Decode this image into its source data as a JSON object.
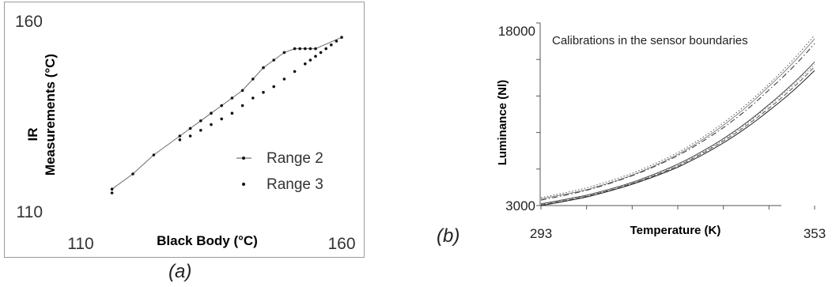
{
  "chart_data": [
    {
      "type": "line",
      "panel_label": "(a)",
      "title": "",
      "xlabel": "Black Body (°C)",
      "ylabel_line1": "IR",
      "ylabel_line2": "Measurements (°C)",
      "xlim": [
        110,
        160
      ],
      "ylim": [
        110,
        160
      ],
      "x_tick_labels": [
        "110",
        "160"
      ],
      "y_tick_labels": [
        "160",
        "110"
      ],
      "legend_position": "bottom-right",
      "series": [
        {
          "name": "Range 2",
          "style": "line-with-markers",
          "x": [
            116,
            120,
            124,
            129,
            131,
            133,
            135,
            137,
            139,
            141,
            143,
            145,
            147,
            149,
            151,
            152,
            153,
            154,
            155,
            160
          ],
          "y": [
            116,
            120,
            125,
            130,
            132,
            134,
            136,
            138,
            140,
            142,
            145,
            148,
            150,
            152,
            153,
            153,
            153,
            153,
            153,
            156
          ]
        },
        {
          "name": "Range 3",
          "style": "markers",
          "x": [
            116,
            129,
            131,
            133,
            135,
            137,
            139,
            141,
            143,
            145,
            147,
            149,
            151,
            153,
            154,
            155,
            156,
            157,
            158,
            159
          ],
          "y": [
            115,
            129,
            130,
            131.5,
            133,
            134.5,
            136,
            138,
            140,
            141.5,
            143,
            145,
            147,
            149,
            150,
            151,
            152,
            153,
            154,
            155
          ]
        }
      ]
    },
    {
      "type": "line",
      "panel_label": "(b)",
      "title": "",
      "annotation": "Calibrations in the sensor boundaries",
      "xlabel": "Temperature (K)",
      "ylabel": "Luminance (Nl)",
      "xlim": [
        293,
        353
      ],
      "ylim": [
        3000,
        18000
      ],
      "x_tick_labels": [
        "293",
        "353"
      ],
      "y_tick_labels": [
        "18000",
        "3000"
      ],
      "x": [
        293,
        303,
        313,
        323,
        333,
        343,
        353
      ],
      "series": [
        {
          "style": "solid",
          "values": [
            3550,
            4300,
            5500,
            7200,
            9600,
            12800,
            16700
          ]
        },
        {
          "style": "dotted",
          "values": [
            3650,
            4450,
            5650,
            7350,
            9800,
            13000,
            17000
          ]
        },
        {
          "style": "dash-dot",
          "values": [
            3450,
            4250,
            5450,
            7100,
            9400,
            12500,
            16300
          ]
        },
        {
          "style": "solid",
          "values": [
            3150,
            3850,
            4900,
            6400,
            8500,
            11300,
            14800
          ]
        },
        {
          "style": "dashed",
          "values": [
            3050,
            3750,
            4800,
            6250,
            8300,
            11000,
            14400
          ]
        },
        {
          "style": "solid",
          "values": [
            3000,
            3700,
            4750,
            6150,
            8150,
            10800,
            14100
          ]
        },
        {
          "style": "dotted",
          "values": [
            3100,
            3800,
            4850,
            6300,
            8400,
            11200,
            14600
          ]
        }
      ]
    }
  ]
}
